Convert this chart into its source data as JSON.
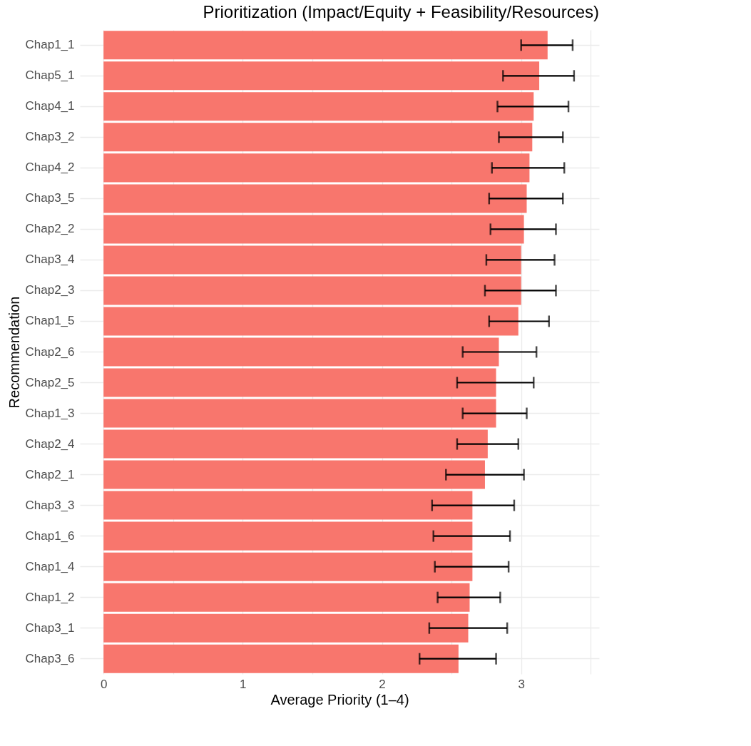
{
  "chart_data": {
    "type": "bar",
    "orientation": "horizontal",
    "title": "Prioritization (Impact/Equity + Feasibility/Resources)",
    "xlabel": "Average Priority (1–4)",
    "ylabel": "Recommendation",
    "categories": [
      "Chap1_1",
      "Chap5_1",
      "Chap4_1",
      "Chap3_2",
      "Chap4_2",
      "Chap3_5",
      "Chap2_2",
      "Chap3_4",
      "Chap2_3",
      "Chap1_5",
      "Chap2_6",
      "Chap2_5",
      "Chap1_3",
      "Chap2_4",
      "Chap2_1",
      "Chap3_3",
      "Chap1_6",
      "Chap1_4",
      "Chap1_2",
      "Chap3_1",
      "Chap3_6"
    ],
    "values": [
      3.19,
      3.13,
      3.09,
      3.08,
      3.06,
      3.04,
      3.02,
      3.0,
      3.0,
      2.98,
      2.84,
      2.82,
      2.82,
      2.76,
      2.74,
      2.65,
      2.65,
      2.65,
      2.63,
      2.62,
      2.55
    ],
    "errors": [
      [
        3.0,
        3.37
      ],
      [
        2.87,
        3.38
      ],
      [
        2.83,
        3.34
      ],
      [
        2.84,
        3.3
      ],
      [
        2.79,
        3.31
      ],
      [
        2.77,
        3.3
      ],
      [
        2.78,
        3.25
      ],
      [
        2.75,
        3.24
      ],
      [
        2.74,
        3.25
      ],
      [
        2.77,
        3.2
      ],
      [
        2.58,
        3.11
      ],
      [
        2.54,
        3.09
      ],
      [
        2.58,
        3.04
      ],
      [
        2.54,
        2.98
      ],
      [
        2.46,
        3.02
      ],
      [
        2.36,
        2.95
      ],
      [
        2.37,
        2.92
      ],
      [
        2.38,
        2.91
      ],
      [
        2.4,
        2.85
      ],
      [
        2.34,
        2.9
      ],
      [
        2.27,
        2.82
      ]
    ],
    "color": "#f8766d",
    "xlim": [
      -0.17,
      3.56
    ],
    "xticks": [
      0,
      {
        "value": 0.5,
        "label": null
      },
      1,
      {
        "value": 1.5,
        "label": null
      },
      2,
      {
        "value": 2.5,
        "label": null
      },
      3,
      {
        "value": 3.5,
        "label": null
      }
    ],
    "grid": true
  }
}
